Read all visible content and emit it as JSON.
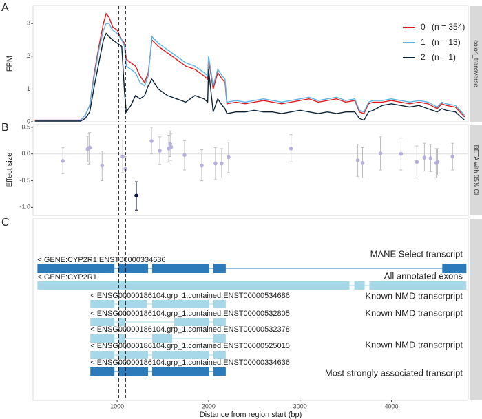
{
  "chart_data": [
    {
      "type": "line",
      "panel": "A",
      "ylabel": "FPM",
      "strip": "colon_transverse",
      "xlim": [
        80,
        4840
      ],
      "ylim": [
        0,
        3.55
      ],
      "yticks": [
        0,
        1,
        2,
        3
      ],
      "vlines": [
        1015,
        1090
      ],
      "x": [
        100,
        200,
        300,
        400,
        500,
        600,
        650,
        700,
        750,
        800,
        850,
        880,
        910,
        950,
        1000,
        1050,
        1080,
        1100,
        1150,
        1200,
        1250,
        1300,
        1340,
        1380,
        1450,
        1550,
        1650,
        1750,
        1850,
        1950,
        1990,
        2000,
        2050,
        2100,
        2150,
        2180,
        2200,
        2300,
        2400,
        2500,
        2600,
        2700,
        2800,
        2900,
        3000,
        3100,
        3200,
        3300,
        3400,
        3500,
        3600,
        3650,
        3700,
        3750,
        3800,
        3900,
        4000,
        4100,
        4200,
        4300,
        4400,
        4500,
        4550,
        4600,
        4700,
        4800
      ],
      "series": [
        {
          "name": "0",
          "n_label": "(n = 354)",
          "color": "#e31a1c",
          "values": [
            0.05,
            0.05,
            0.05,
            0.05,
            0.05,
            0.05,
            0.2,
            0.5,
            1.5,
            2.3,
            3.0,
            3.3,
            3.2,
            2.9,
            2.8,
            2.5,
            2.4,
            1.9,
            1.8,
            1.7,
            1.4,
            1.2,
            1.5,
            2.5,
            2.3,
            2.1,
            1.9,
            1.7,
            1.6,
            1.4,
            1.3,
            1.9,
            1.0,
            1.5,
            1.3,
            1.2,
            0.55,
            0.6,
            0.55,
            0.6,
            0.65,
            0.6,
            0.55,
            0.6,
            0.65,
            0.7,
            0.6,
            0.65,
            0.7,
            0.6,
            0.65,
            0.3,
            0.25,
            0.55,
            0.6,
            0.6,
            0.65,
            0.6,
            0.55,
            0.6,
            0.55,
            0.4,
            0.55,
            0.5,
            0.45,
            0.15
          ]
        },
        {
          "name": "1",
          "n_label": "(n = 13)",
          "color": "#56b4e9",
          "values": [
            0.05,
            0.05,
            0.05,
            0.05,
            0.05,
            0.05,
            0.2,
            0.5,
            1.4,
            2.2,
            2.8,
            3.0,
            3.0,
            2.8,
            2.7,
            2.5,
            2.3,
            1.7,
            1.6,
            1.5,
            1.2,
            1.1,
            1.4,
            2.6,
            2.4,
            2.2,
            2.0,
            1.8,
            1.7,
            1.5,
            1.4,
            2.0,
            1.1,
            1.6,
            1.4,
            1.3,
            0.6,
            0.65,
            0.6,
            0.65,
            0.7,
            0.65,
            0.6,
            0.65,
            0.7,
            0.75,
            0.65,
            0.7,
            0.75,
            0.65,
            0.7,
            0.35,
            0.3,
            0.6,
            0.65,
            0.65,
            0.7,
            0.65,
            0.6,
            0.65,
            0.6,
            0.45,
            0.6,
            0.55,
            0.5,
            0.2
          ]
        },
        {
          "name": "2",
          "n_label": "(n = 1)",
          "color": "#0b2338",
          "values": [
            0.02,
            0.02,
            0.02,
            0.02,
            0.02,
            0.02,
            0.1,
            0.3,
            1.1,
            1.8,
            2.5,
            2.7,
            2.6,
            2.5,
            2.4,
            2.3,
            0.9,
            0.3,
            0.5,
            0.8,
            0.7,
            0.8,
            1.1,
            1.3,
            1.0,
            0.8,
            0.7,
            0.6,
            0.8,
            0.7,
            0.6,
            1.6,
            0.3,
            0.7,
            0.5,
            0.4,
            0.25,
            0.3,
            0.3,
            0.35,
            0.3,
            0.3,
            0.25,
            0.3,
            0.35,
            0.3,
            0.25,
            0.3,
            0.25,
            0.3,
            0.3,
            0.1,
            0.05,
            0.3,
            0.35,
            0.5,
            0.55,
            0.5,
            0.45,
            0.5,
            0.4,
            0.3,
            0.4,
            0.35,
            0.3,
            0.05
          ]
        }
      ]
    },
    {
      "type": "errorbar",
      "panel": "B",
      "ylabel": "Effect size",
      "strip": "BETA with 95% CI",
      "xlim": [
        80,
        4840
      ],
      "ylim": [
        -1.15,
        0.55
      ],
      "yticks": [
        0.5,
        {
          "value": 0,
          "label": "0.0"
        },
        -0.5,
        {
          "value": -1,
          "label": "-1.0"
        }
      ],
      "vlines": [
        1015,
        1090
      ],
      "ci_color": "#bdbdbd",
      "x": [
        406,
        677,
        692,
        700,
        835,
        1060,
        1090,
        1210,
        1376,
        1466,
        1564,
        1580,
        1590,
        1737,
        1925,
        2075,
        2143,
        2218,
        2902,
        3632,
        3684,
        3880,
        4105,
        4278,
        4361,
        4429,
        4489,
        4505,
        4669
      ],
      "values": [
        -0.13,
        0.09,
        0.11,
        0.12,
        -0.22,
        -0.05,
        -0.28,
        -0.78,
        0.24,
        0.06,
        0.1,
        0.19,
        0.13,
        -0.02,
        -0.22,
        -0.18,
        -0.18,
        -0.06,
        0.1,
        -0.12,
        -0.17,
        0.01,
        0.0,
        -0.15,
        -0.07,
        -0.08,
        -0.17,
        -0.15,
        -0.05
      ],
      "lower": [
        -0.37,
        -0.15,
        -0.2,
        -0.15,
        -0.5,
        -0.35,
        -0.5,
        -1.05,
        0.0,
        -0.2,
        -0.15,
        -0.05,
        -0.12,
        -0.3,
        -0.5,
        -0.48,
        -0.45,
        -0.35,
        -0.15,
        -0.42,
        -0.45,
        -0.3,
        -0.3,
        -0.45,
        -0.32,
        -0.33,
        -0.45,
        -0.4,
        -0.3
      ],
      "upper": [
        0.12,
        0.33,
        0.38,
        0.4,
        0.05,
        0.3,
        -0.05,
        -0.52,
        0.5,
        0.32,
        0.35,
        0.43,
        0.38,
        0.25,
        0.08,
        0.12,
        0.1,
        0.22,
        0.36,
        0.18,
        0.12,
        0.32,
        0.3,
        0.15,
        0.2,
        0.18,
        0.1,
        0.1,
        0.2
      ],
      "colors": [
        "#b5b0dc",
        "#b5b0dc",
        "#b5b0dc",
        "#b5b0dc",
        "#b5b0dc",
        "#b5b0dc",
        "#b5b0dc",
        "#0c1445",
        "#b5b0dc",
        "#b5b0dc",
        "#b5b0dc",
        "#b5b0dc",
        "#b5b0dc",
        "#b5b0dc",
        "#b5b0dc",
        "#b5b0dc",
        "#b5b0dc",
        "#b5b0dc",
        "#b5b0dc",
        "#b5b0dc",
        "#b5b0dc",
        "#b5b0dc",
        "#b5b0dc",
        "#b5b0dc",
        "#b5b0dc",
        "#b5b0dc",
        "#b5b0dc",
        "#b5b0dc",
        "#b5b0dc"
      ]
    },
    {
      "type": "gene-track",
      "panel": "C",
      "xlabel": "Distance from region start (bp)",
      "xlim": [
        80,
        4840
      ],
      "xticks": [
        1000,
        2000,
        3000,
        4000
      ],
      "vlines": [
        1015,
        1090
      ],
      "tracks": [
        {
          "label": "< GENE:CYP2R1:ENST00000334636",
          "note": "MANE Select transcript",
          "color": "#2b7bba",
          "exons": [
            [
              128,
              970
            ],
            [
              1015,
              1338
            ],
            [
              1383,
              2008
            ],
            [
              2053,
              2188
            ],
            [
              4556,
              4820
            ]
          ]
        },
        {
          "label": "< GENE:CYP2R1",
          "note": "All annotated exons",
          "color": "#a6d8ea",
          "exons": [
            [
              128,
              3541
            ],
            [
              3594,
              3707
            ],
            [
              3759,
              4820
            ]
          ]
        },
        {
          "label": "< ENSG00000186104.grp_1.contained.ENST00000534686",
          "note": "Known NMD transcrpript",
          "color": "#a6d8ea",
          "exons": [
            [
              707,
              970
            ],
            [
              1015,
              1323
            ],
            [
              1383,
              2008
            ],
            [
              2053,
              2188
            ]
          ]
        },
        {
          "label": "< ENSG00000186104.grp_1.contained.ENST00000532805",
          "note": "Known NMD transcrpript",
          "color": "#a6d8ea",
          "exons": [
            [
              707,
              970
            ],
            [
              1015,
              1090
            ],
            [
              1624,
              2008
            ],
            [
              2053,
              2188
            ]
          ]
        },
        {
          "label": "< ENSG00000186104.grp_1.contained.ENST00000532378",
          "color": "#a6d8ea",
          "exons": [
            [
              707,
              970
            ],
            [
              1015,
              1090
            ],
            [
              1383,
              1602
            ],
            [
              2053,
              2188
            ]
          ]
        },
        {
          "label": "< ENSG00000186104.grp_1.contained.ENST00000525015",
          "note": "Known NMD transcrpript",
          "color": "#a6d8ea",
          "exons": [
            [
              707,
              970
            ],
            [
              1015,
              1338
            ],
            [
              1383,
              2008
            ],
            [
              2053,
              2188
            ]
          ]
        },
        {
          "label": "< ENSG00000186104.grp_1.contained.ENST00000334636",
          "note": "Most strongly associated transcript",
          "color": "#2b7bba",
          "exons": [
            [
              707,
              970
            ],
            [
              1015,
              1338
            ],
            [
              1383,
              2008
            ],
            [
              2053,
              2188
            ]
          ]
        }
      ]
    }
  ]
}
